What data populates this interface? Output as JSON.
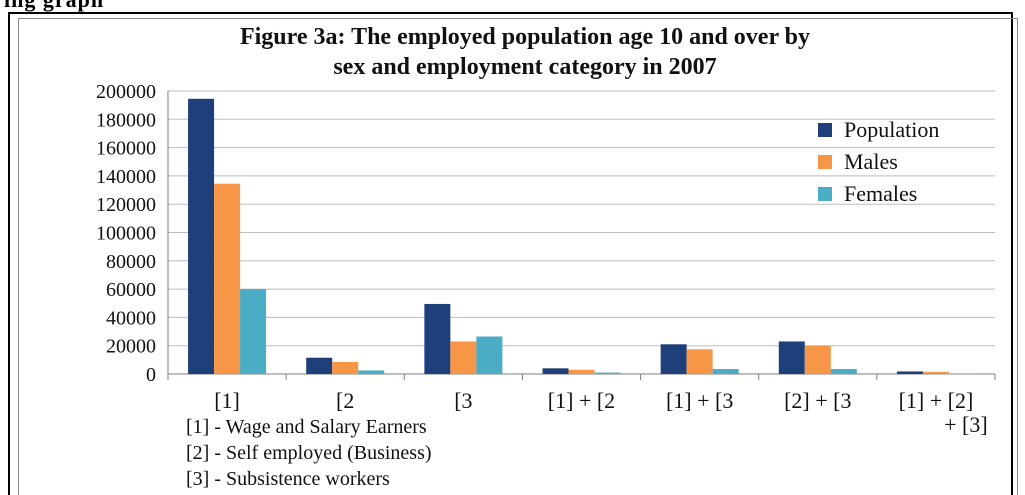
{
  "heading_fragment": "ing graph",
  "chart_data": {
    "type": "bar",
    "title_line1": "Figure 3a: The employed population age 10 and over by",
    "title_line2": "sex and employment category in 2007",
    "categories": [
      "[1]",
      "[2",
      "[3",
      "[1] + [2",
      "[1] + [3",
      "[2] + [3",
      "[1] + [2] + [3]"
    ],
    "category_lines": [
      [
        "[1]"
      ],
      [
        "[2"
      ],
      [
        "[3"
      ],
      [
        "[1] + [2"
      ],
      [
        "[1] + [3"
      ],
      [
        "[2] + [3"
      ],
      [
        "[1] + [2]",
        "+ [3]"
      ]
    ],
    "series": [
      {
        "name": "Population",
        "color": "#1f3f7a",
        "values": [
          194500,
          11500,
          49500,
          4000,
          21000,
          23000,
          1800
        ]
      },
      {
        "name": "Males",
        "color": "#f79646",
        "values": [
          134500,
          8500,
          23000,
          3000,
          17500,
          20000,
          1500
        ]
      },
      {
        "name": "Females",
        "color": "#4bacc6",
        "values": [
          60000,
          2500,
          26500,
          1000,
          3500,
          3500,
          300
        ]
      }
    ],
    "ylim": [
      0,
      200000
    ],
    "yticks": [
      0,
      20000,
      40000,
      60000,
      80000,
      100000,
      120000,
      140000,
      160000,
      180000,
      200000
    ],
    "ytick_labels": [
      "0",
      "20000",
      "40000",
      "60000",
      "80000",
      "100000",
      "120000",
      "140000",
      "160000",
      "180000",
      "200000"
    ],
    "grid": true,
    "legend_position": "top-right",
    "xlabel": "",
    "ylabel": ""
  },
  "footnotes": [
    "[1] - Wage and Salary Earners",
    "[2] - Self employed (Business)",
    "[3] - Subsistence workers"
  ]
}
